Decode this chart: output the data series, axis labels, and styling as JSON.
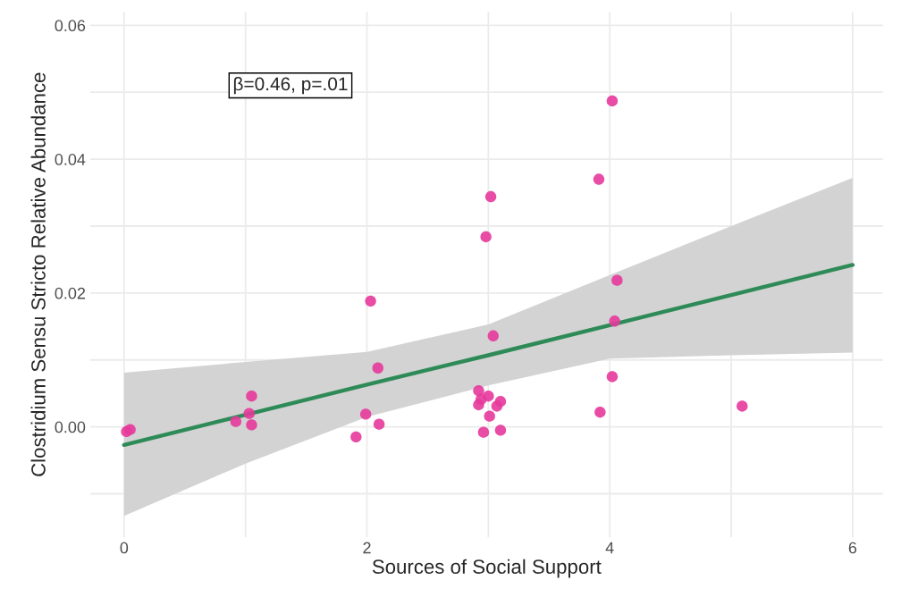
{
  "chart_data": {
    "type": "scatter",
    "xlabel": "Sources of Social Support",
    "ylabel": "Clostridium Sensu Stricto Relative Abundance",
    "annotations": [
      "β=0.46, p=.01"
    ],
    "xlim": [
      -0.28,
      6.25
    ],
    "ylim": [
      -0.0165,
      0.062
    ],
    "xticks": [
      0,
      {
        "value": 1,
        "label": null
      },
      2,
      {
        "value": 3,
        "label": null
      },
      4,
      {
        "value": 5,
        "label": null
      },
      6
    ],
    "yticks": [
      {
        "value": -0.01,
        "label": null
      },
      {
        "value": 0,
        "label": "0.00"
      },
      {
        "value": 0.01,
        "label": null
      },
      {
        "value": 0.02,
        "label": "0.02"
      },
      {
        "value": 0.03,
        "label": null
      },
      {
        "value": 0.04,
        "label": "0.04"
      },
      {
        "value": 0.05,
        "label": null
      },
      {
        "value": 0.06,
        "label": "0.06"
      }
    ],
    "grid": true,
    "legend": false,
    "marker": "circle",
    "series": [
      {
        "type": "line",
        "color": "#2e8b57",
        "line_style": "solid",
        "marker": "none",
        "x": [
          0,
          1,
          2,
          3,
          4,
          5,
          6
        ],
        "values": [
          -0.0027,
          0.0018,
          0.0063,
          0.0107,
          0.0152,
          0.0197,
          0.0242
        ],
        "lower": [
          -0.0133,
          -0.0055,
          0.0015,
          0.0062,
          0.0102,
          0.0107,
          0.0111
        ],
        "upper": [
          0.0081,
          0.0097,
          0.0112,
          0.0153,
          0.0227,
          0.03,
          0.0372
        ]
      },
      {
        "color": "#e6399b",
        "x": [
          0.02,
          0.05,
          0.92,
          1.05,
          1.03,
          1.05,
          1.91,
          1.99,
          2.03,
          2.09,
          2.1,
          3.02,
          2.98,
          3.04,
          2.92,
          3.0,
          2.92,
          2.94,
          3.1,
          3.07,
          3.01,
          2.96,
          3.1,
          4.02,
          3.91,
          4.06,
          4.04,
          4.02,
          3.92,
          5.09
        ],
        "values": [
          -0.0007,
          -0.0004,
          0.0008,
          0.0046,
          0.002,
          0.0003,
          -0.0015,
          0.0019,
          0.0188,
          0.0088,
          0.0004,
          0.0344,
          0.0284,
          0.0136,
          0.0054,
          0.0046,
          0.0033,
          0.0041,
          0.0038,
          0.0031,
          0.0016,
          -0.0008,
          -0.0005,
          0.0487,
          0.037,
          0.0219,
          0.0158,
          0.0075,
          0.0022,
          0.0031
        ]
      }
    ]
  }
}
